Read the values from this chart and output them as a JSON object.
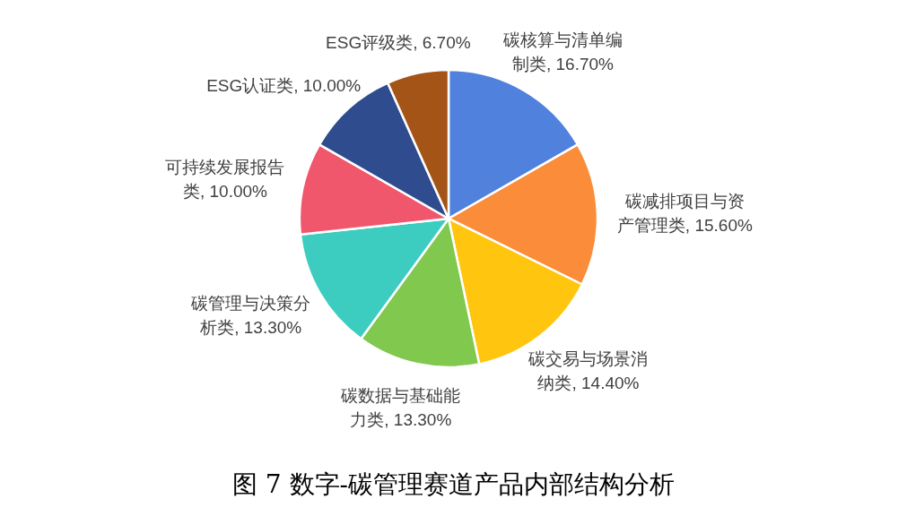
{
  "chart_data": {
    "type": "pie",
    "title": "图 7 数字-碳管理赛道产品内部结构分析",
    "categories": [
      "碳核算与清单编制类",
      "碳减排项目与资产管理类",
      "碳交易与场景消纳类",
      "碳数据与基础能力类",
      "碳管理与决策分析类",
      "可持续发展报告类",
      "ESG认证类",
      "ESG评级类"
    ],
    "values": [
      16.7,
      15.6,
      14.4,
      13.3,
      13.3,
      10.0,
      10.0,
      6.7
    ],
    "value_labels": [
      "16.70%",
      "15.60%",
      "14.40%",
      "13.30%",
      "13.30%",
      "10.00%",
      "10.00%",
      "6.70%"
    ],
    "colors": [
      "#5081dc",
      "#fa8c3a",
      "#ffc50f",
      "#80c84e",
      "#3ccdc0",
      "#f0566c",
      "#2e4c8e",
      "#a55418"
    ]
  }
}
